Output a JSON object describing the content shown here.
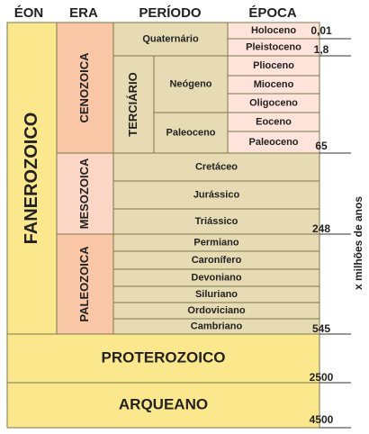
{
  "headers": [
    "ÉON",
    "ERA",
    "PERÍODO",
    "ÉPOCA"
  ],
  "eons": [
    "FANEROZOICO",
    "PROTEROZOICO",
    "ARQUEANO"
  ],
  "eras": [
    "CENOZOICA",
    "MESOZOICA",
    "PALEOZOICA"
  ],
  "periods": [
    "Quaternário",
    "TERCIÁRIO",
    "Neógeno",
    "Paleoceno",
    "Cretáceo",
    "Jurássico",
    "Triássico",
    "Permiano",
    "Caronífero",
    "Devoniano",
    "Siluriano",
    "Ordoviciano",
    "Cambriano"
  ],
  "epochs": [
    "Holoceno",
    "Pleistoceno",
    "Plioceno",
    "Mioceno",
    "Oligoceno",
    "Eoceno",
    "Paleoceno"
  ],
  "time_labels": [
    "0,01",
    "1,8",
    "65",
    "248",
    "545",
    "2500",
    "4500"
  ],
  "axis_label": "x milhões de anos"
}
